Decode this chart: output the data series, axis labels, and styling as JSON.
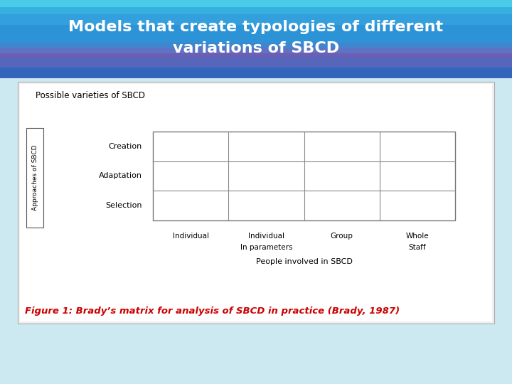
{
  "title_line1": "Models that create typologies of different",
  "title_line2": "variations of SBCD",
  "title_text_color": "#ffffff",
  "slide_bg_color": "#cce8f0",
  "figure_caption": "Figure 1: Brady’s matrix for analysis of SBCD in practice (Brady, 1987)",
  "caption_color": "#cc0000",
  "matrix_title": "Possible varieties of SBCD",
  "y_axis_label": "Approaches of SBCD",
  "x_axis_label": "People involved in SBCD",
  "row_labels": [
    "Creation",
    "Adaptation",
    "Selection"
  ],
  "col_labels_line1": [
    "Individual",
    "Individual",
    "Group",
    "Whole"
  ],
  "col_labels_line2": [
    "",
    "In parameters",
    "",
    "Staff"
  ],
  "n_rows": 3,
  "n_cols": 4,
  "matrix_line_color": "#999999"
}
